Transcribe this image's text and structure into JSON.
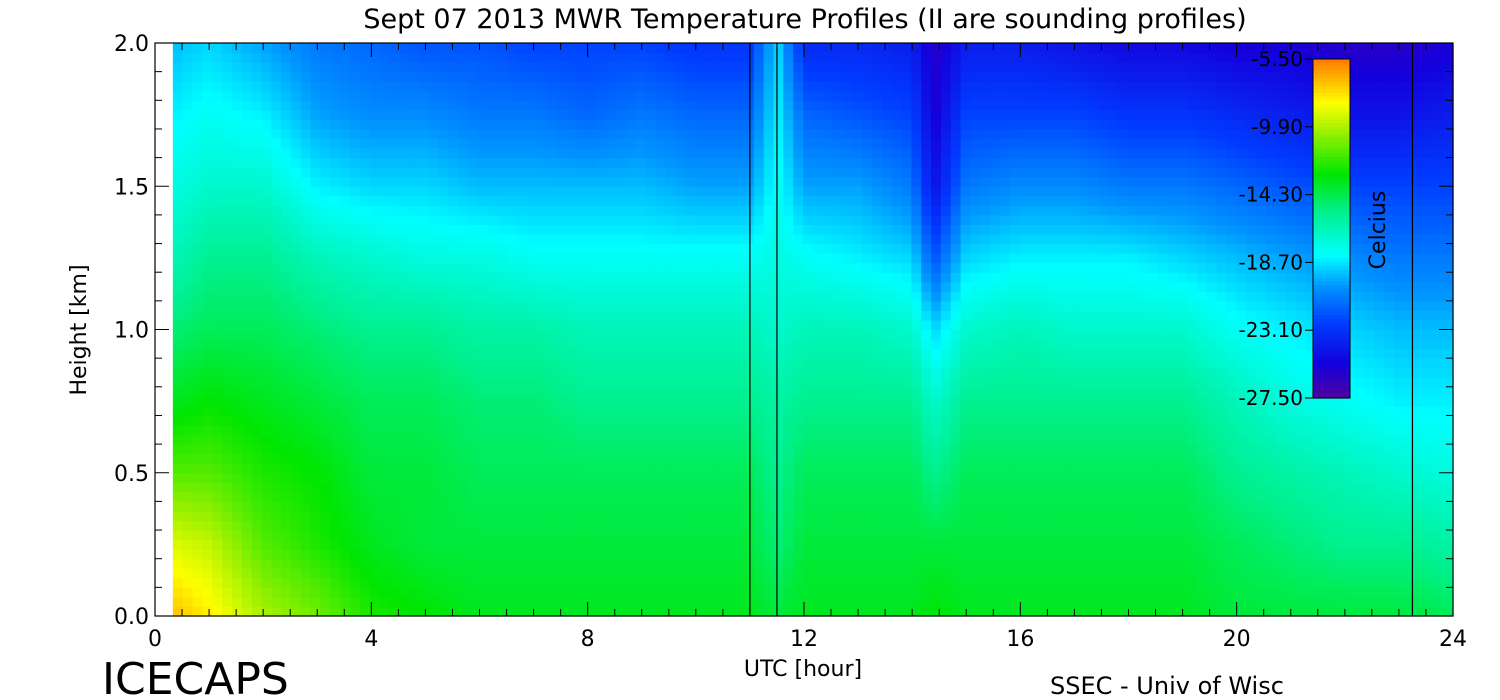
{
  "chart_data": {
    "type": "heatmap",
    "title": "Sept 07 2013 MWR Temperature Profiles (II are sounding profiles)",
    "xlabel": "UTC [hour]",
    "ylabel": "Height [km]",
    "xlim": [
      0,
      24
    ],
    "ylim": [
      0,
      2.0
    ],
    "x_ticks": [
      "0",
      "4",
      "8",
      "12",
      "16",
      "20",
      "24"
    ],
    "y_ticks": [
      "0.0",
      "0.5",
      "1.0",
      "1.5",
      "2.0"
    ],
    "sounding_times_utc": [
      11.0,
      11.5,
      23.25
    ],
    "colorbar": {
      "label": "Celcius",
      "ticks": [
        "-5.50",
        "-9.90",
        "-14.30",
        "-18.70",
        "-23.10",
        "-27.50"
      ],
      "range": [
        -27.5,
        -5.5
      ]
    },
    "z_units": "Celcius",
    "hours": [
      0.33,
      1,
      2,
      3,
      4,
      5,
      6,
      7,
      8,
      9,
      10,
      11,
      11.5,
      12,
      13,
      14,
      14.4,
      15,
      16,
      17,
      18,
      19,
      20,
      21,
      22,
      23,
      24
    ],
    "heights_km": [
      0,
      0.25,
      0.5,
      0.75,
      1.0,
      1.25,
      1.5,
      1.75,
      2.0
    ],
    "temperatures_c": [
      [
        -7.0,
        -9.0,
        -11.5,
        -13.5,
        -15.0,
        -16.5,
        -17.5,
        -18.5,
        -19.5
      ],
      [
        -8.0,
        -9.5,
        -11.5,
        -13.0,
        -14.5,
        -15.5,
        -17.0,
        -18.0,
        -19.0
      ],
      [
        -10.0,
        -11.5,
        -12.5,
        -13.5,
        -14.5,
        -15.5,
        -17.0,
        -18.5,
        -20.0
      ],
      [
        -11.0,
        -12.5,
        -13.0,
        -14.0,
        -15.0,
        -16.5,
        -18.5,
        -20.0,
        -21.0
      ],
      [
        -12.5,
        -13.5,
        -14.0,
        -14.5,
        -15.5,
        -17.0,
        -19.0,
        -20.5,
        -21.5
      ],
      [
        -13.0,
        -14.0,
        -14.0,
        -14.5,
        -15.5,
        -17.5,
        -19.0,
        -20.5,
        -22.0
      ],
      [
        -13.5,
        -14.0,
        -14.5,
        -15.0,
        -16.0,
        -17.5,
        -19.5,
        -21.0,
        -22.0
      ],
      [
        -13.5,
        -14.0,
        -14.5,
        -15.0,
        -16.0,
        -18.0,
        -19.5,
        -21.0,
        -22.5
      ],
      [
        -13.5,
        -14.0,
        -14.5,
        -15.5,
        -16.5,
        -18.0,
        -19.5,
        -21.5,
        -22.5
      ],
      [
        -13.5,
        -14.0,
        -14.5,
        -15.5,
        -16.5,
        -18.0,
        -19.5,
        -21.0,
        -22.5
      ],
      [
        -13.5,
        -14.0,
        -14.5,
        -15.5,
        -16.5,
        -18.0,
        -20.0,
        -21.5,
        -23.0
      ],
      [
        -13.5,
        -14.0,
        -14.5,
        -15.5,
        -16.5,
        -18.0,
        -20.0,
        -21.5,
        -23.0
      ],
      [
        -14.0,
        -15.0,
        -15.5,
        -16.0,
        -17.0,
        -17.5,
        -18.0,
        -18.5,
        -19.0
      ],
      [
        -13.5,
        -14.0,
        -14.5,
        -15.5,
        -16.5,
        -18.0,
        -20.0,
        -21.5,
        -23.5
      ],
      [
        -13.5,
        -14.0,
        -14.5,
        -15.5,
        -16.5,
        -18.5,
        -20.0,
        -22.0,
        -23.5
      ],
      [
        -13.5,
        -14.0,
        -14.5,
        -15.5,
        -17.0,
        -19.0,
        -21.0,
        -22.5,
        -24.0
      ],
      [
        -13.0,
        -14.0,
        -15.5,
        -17.0,
        -19.0,
        -22.0,
        -24.5,
        -25.5,
        -26.0
      ],
      [
        -13.5,
        -14.0,
        -14.5,
        -15.5,
        -17.0,
        -19.0,
        -21.0,
        -22.5,
        -24.0
      ],
      [
        -13.5,
        -14.0,
        -14.5,
        -15.5,
        -16.5,
        -18.5,
        -20.5,
        -22.5,
        -24.0
      ],
      [
        -13.5,
        -14.0,
        -14.5,
        -15.5,
        -17.0,
        -18.5,
        -20.5,
        -22.5,
        -24.5
      ],
      [
        -13.5,
        -14.0,
        -14.5,
        -15.5,
        -17.0,
        -18.5,
        -21.0,
        -23.0,
        -25.0
      ],
      [
        -13.5,
        -14.0,
        -14.5,
        -15.5,
        -17.0,
        -19.0,
        -21.0,
        -23.0,
        -25.0
      ],
      [
        -14.0,
        -14.5,
        -15.5,
        -16.5,
        -18.0,
        -19.5,
        -21.5,
        -23.5,
        -25.5
      ],
      [
        -14.0,
        -15.0,
        -16.0,
        -17.5,
        -18.5,
        -20.0,
        -22.0,
        -24.0,
        -25.5
      ],
      [
        -14.0,
        -15.5,
        -16.5,
        -18.0,
        -19.0,
        -20.5,
        -22.5,
        -24.5,
        -26.0
      ],
      [
        -14.0,
        -15.5,
        -17.0,
        -18.5,
        -19.5,
        -21.0,
        -22.5,
        -24.5,
        -26.0
      ],
      [
        -14.5,
        -16.0,
        -17.5,
        -18.5,
        -19.5,
        -21.0,
        -22.5,
        -24.0,
        -25.5
      ]
    ]
  },
  "footer": {
    "project": "ICECAPS",
    "credit": "SSEC - Univ of Wisc"
  }
}
